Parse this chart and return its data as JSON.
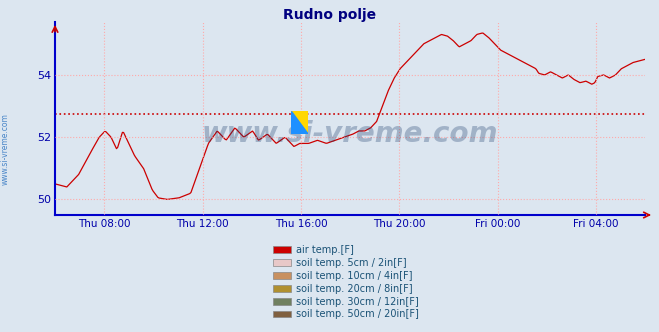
{
  "title": "Rudno polje",
  "title_color": "#000080",
  "background_color": "#dce6f0",
  "plot_bg_color": "#dce6f0",
  "grid_color": "#ffaaaa",
  "watermark": "www.si-vreme.com",
  "watermark_color": "#1a3a6a",
  "ylim": [
    49.5,
    55.7
  ],
  "yticks": [
    50,
    52,
    54
  ],
  "ylabel_color": "#0000aa",
  "line_color": "#cc0000",
  "avg_line_color": "#cc0000",
  "avg_value": 52.75,
  "legend_labels": [
    "air temp.[F]",
    "soil temp. 5cm / 2in[F]",
    "soil temp. 10cm / 4in[F]",
    "soil temp. 20cm / 8in[F]",
    "soil temp. 30cm / 12in[F]",
    "soil temp. 50cm / 20in[F]"
  ],
  "legend_colors": [
    "#cc0000",
    "#e8c8c8",
    "#c89060",
    "#b09030",
    "#708060",
    "#806040"
  ],
  "xtick_labels": [
    "Thu 08:00",
    "Thu 12:00",
    "Thu 16:00",
    "Thu 20:00",
    "Fri 00:00",
    "Fri 04:00"
  ],
  "sidebar_text": "www.si-vreme.com",
  "sidebar_color": "#4a86c8"
}
